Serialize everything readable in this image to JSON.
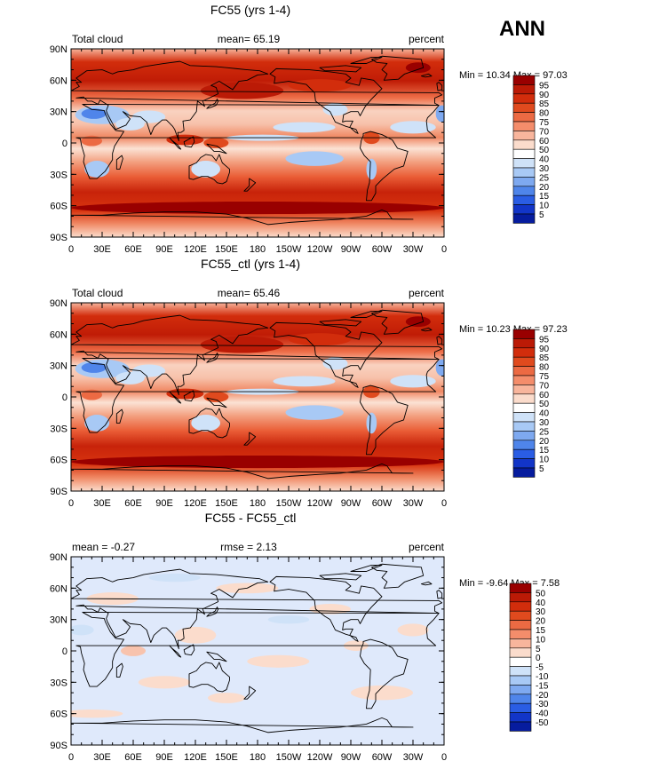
{
  "season_label": "ANN",
  "chart_data": [
    {
      "type": "heatmap",
      "title": "FC55 (yrs 1-4)",
      "left_label": "Total cloud",
      "center_label": "mean=  65.19",
      "right_label": "percent",
      "stats": "Min =   10.34  Max =   97.03",
      "lat_ticks": [
        "90N",
        "60N",
        "30N",
        "0",
        "30S",
        "60S",
        "90S"
      ],
      "lon_ticks": [
        "0",
        "30E",
        "60E",
        "90E",
        "120E",
        "150E",
        "180",
        "150W",
        "120W",
        "90W",
        "60W",
        "30W",
        "0"
      ],
      "colorbar_levels": [
        "95",
        "90",
        "85",
        "80",
        "75",
        "70",
        "60",
        "50",
        "40",
        "30",
        "25",
        "20",
        "15",
        "10",
        "5"
      ],
      "colorbar_colors": [
        "#990000",
        "#bb1a06",
        "#d22d0c",
        "#e04a1e",
        "#ec6a43",
        "#f48d6b",
        "#f8b59c",
        "#fbdccc",
        "#ffffff",
        "#cfe2f8",
        "#a8c9f5",
        "#7ea9f0",
        "#4f85ea",
        "#2a5de4",
        "#1235c8",
        "#061c9e"
      ],
      "mean": 65.19,
      "min": 10.34,
      "max": 97.03
    },
    {
      "type": "heatmap",
      "title": "FC55_ctl (yrs 1-4)",
      "left_label": "Total cloud",
      "center_label": "mean=  65.46",
      "right_label": "percent",
      "stats": "Min =   10.23  Max =   97.23",
      "lat_ticks": [
        "90N",
        "60N",
        "30N",
        "0",
        "30S",
        "60S",
        "90S"
      ],
      "lon_ticks": [
        "0",
        "30E",
        "60E",
        "90E",
        "120E",
        "150E",
        "180",
        "150W",
        "120W",
        "90W",
        "60W",
        "30W",
        "0"
      ],
      "colorbar_levels": [
        "95",
        "90",
        "85",
        "80",
        "75",
        "70",
        "60",
        "50",
        "40",
        "30",
        "25",
        "20",
        "15",
        "10",
        "5"
      ],
      "colorbar_colors": [
        "#990000",
        "#bb1a06",
        "#d22d0c",
        "#e04a1e",
        "#ec6a43",
        "#f48d6b",
        "#f8b59c",
        "#fbdccc",
        "#ffffff",
        "#cfe2f8",
        "#a8c9f5",
        "#7ea9f0",
        "#4f85ea",
        "#2a5de4",
        "#1235c8",
        "#061c9e"
      ],
      "mean": 65.46,
      "min": 10.23,
      "max": 97.23
    },
    {
      "type": "heatmap",
      "title": "FC55 - FC55_ctl",
      "left_label": "mean =   -0.27",
      "center_label": "rmse =    2.13",
      "right_label": "percent",
      "stats": "Min =   -9.64  Max =    7.58",
      "lat_ticks": [
        "90N",
        "60N",
        "30N",
        "0",
        "30S",
        "60S",
        "90S"
      ],
      "lon_ticks": [
        "0",
        "30E",
        "60E",
        "90E",
        "120E",
        "150E",
        "180",
        "150W",
        "120W",
        "90W",
        "60W",
        "30W",
        "0"
      ],
      "colorbar_levels": [
        "50",
        "40",
        "30",
        "20",
        "15",
        "10",
        "5",
        "0",
        "-5",
        "-10",
        "-15",
        "-20",
        "-30",
        "-40",
        "-50"
      ],
      "colorbar_colors": [
        "#990000",
        "#bb1a06",
        "#d22d0c",
        "#e04a1e",
        "#ec6a43",
        "#f48d6b",
        "#f8b59c",
        "#fbdccc",
        "#ffffff",
        "#cfe2f8",
        "#a8c9f5",
        "#7ea9f0",
        "#4f85ea",
        "#2a5de4",
        "#1235c8",
        "#061c9e"
      ],
      "mean": -0.27,
      "rmse": 2.13,
      "min": -9.64,
      "max": 7.58
    }
  ]
}
